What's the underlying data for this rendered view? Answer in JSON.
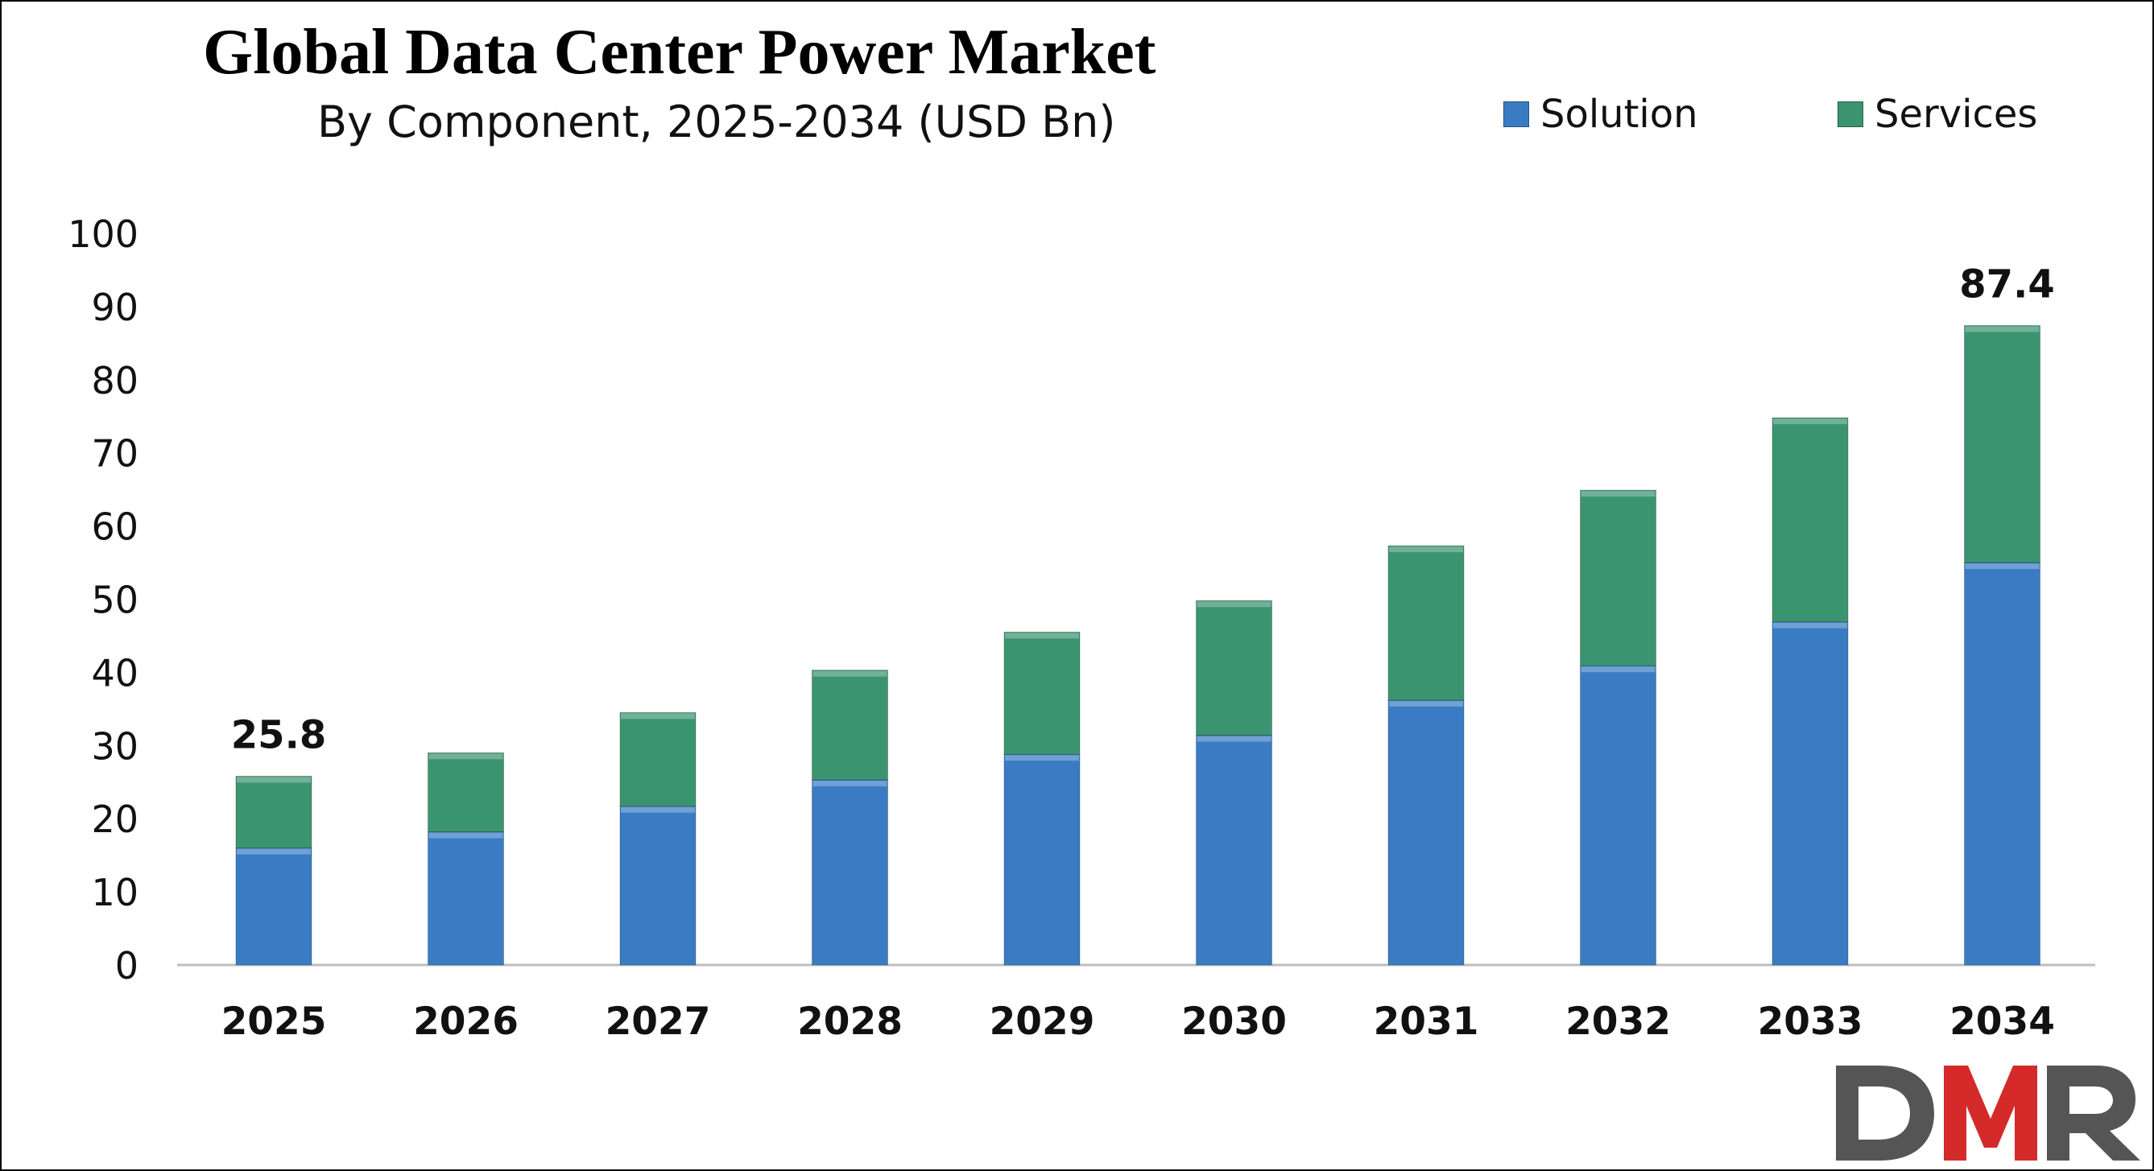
{
  "chart_data": {
    "type": "bar",
    "stacked": true,
    "title": "Global Data Center Power Market",
    "subtitle": "By Component, 2025-2034 (USD Bn)",
    "categories": [
      "2025",
      "2026",
      "2027",
      "2028",
      "2029",
      "2030",
      "2031",
      "2032",
      "2033",
      "2034"
    ],
    "series": [
      {
        "name": "Solution",
        "color": "#3a7cc4",
        "values": [
          16.0,
          18.2,
          21.7,
          25.3,
          28.8,
          31.4,
          36.2,
          40.9,
          46.9,
          55.0
        ]
      },
      {
        "name": "Services",
        "color": "#3b9470",
        "values": [
          9.8,
          10.8,
          12.8,
          15.0,
          16.7,
          18.4,
          21.1,
          24.0,
          27.9,
          32.4
        ]
      }
    ],
    "data_labels": [
      {
        "category": "2025",
        "text": "25.8"
      },
      {
        "category": "2034",
        "text": "87.4"
      }
    ],
    "ylim": [
      0,
      100
    ],
    "yticks": [
      "0",
      "10",
      "20",
      "30",
      "40",
      "50",
      "60",
      "70",
      "80",
      "90",
      "100"
    ],
    "grid": false,
    "legend_position": "top-right"
  },
  "logo": {
    "text": "DMR",
    "colors": [
      "#555555",
      "#d42a2a",
      "#555555"
    ]
  }
}
